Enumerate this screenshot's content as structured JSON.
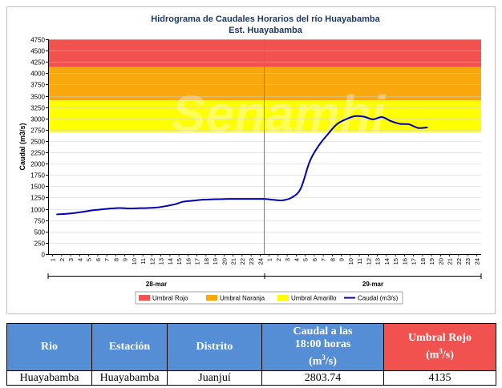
{
  "chart_data": {
    "type": "line",
    "title": "Hidrograma de Caudales Horarios del río Huayabamba",
    "subtitle": "Est. Huayabamba",
    "ylabel": "Caudal  (m3/s)",
    "ylim": [
      0,
      4750
    ],
    "y_ticks": [
      0,
      250,
      500,
      750,
      1000,
      1250,
      1500,
      1750,
      2000,
      2250,
      2500,
      2750,
      3000,
      3250,
      3500,
      3750,
      4000,
      4250,
      4500,
      4750
    ],
    "x_tick_labels": [
      "1",
      "2",
      "3",
      "4",
      "5",
      "6",
      "7",
      "8",
      "9",
      "10",
      "11",
      "12",
      "13",
      "14",
      "15",
      "16",
      "17",
      "18",
      "19",
      "20",
      "21",
      "22",
      "23",
      "24",
      "1",
      "2",
      "3",
      "4",
      "5",
      "6",
      "7",
      "8",
      "9",
      "10",
      "11",
      "12",
      "13",
      "14",
      "15",
      "16",
      "17",
      "18",
      "19",
      "20",
      "21",
      "22",
      "23",
      "24"
    ],
    "day_labels": [
      "28-mar",
      "29-mar"
    ],
    "thresholds": [
      {
        "name": "Umbral Rojo",
        "from": 4135,
        "to": 4750,
        "color": "#f2524f"
      },
      {
        "name": "Umbral Naranja",
        "from": 3400,
        "to": 4135,
        "color": "#f9a80d"
      },
      {
        "name": "Umbral Amarillo",
        "from": 2700,
        "to": 3400,
        "color": "#ffff00"
      }
    ],
    "series": [
      {
        "name": "Caudal (m3/s)",
        "color": "#0000b0",
        "values": [
          880,
          890,
          910,
          940,
          970,
          990,
          1010,
          1020,
          1010,
          1015,
          1020,
          1030,
          1060,
          1100,
          1160,
          1180,
          1200,
          1210,
          1215,
          1220,
          1220,
          1220,
          1220,
          1220,
          1200,
          1190,
          1250,
          1450,
          2050,
          2400,
          2650,
          2870,
          2980,
          3050,
          3040,
          2980,
          3030,
          2940,
          2880,
          2870,
          2790,
          2800
        ]
      }
    ],
    "watermark": "Senamhi"
  },
  "table": {
    "headers": [
      "Rio",
      "Estación",
      "Distrito",
      "Caudal a las 18:00 horas (m3/s)",
      "Umbral Rojo (m3/s)"
    ],
    "row": [
      "Huayabamba",
      "Huayabamba",
      "Juanjuí",
      "2803.74",
      "4135"
    ]
  },
  "colors": {
    "header_blue": "#558ed5",
    "header_red": "#f2524f"
  }
}
